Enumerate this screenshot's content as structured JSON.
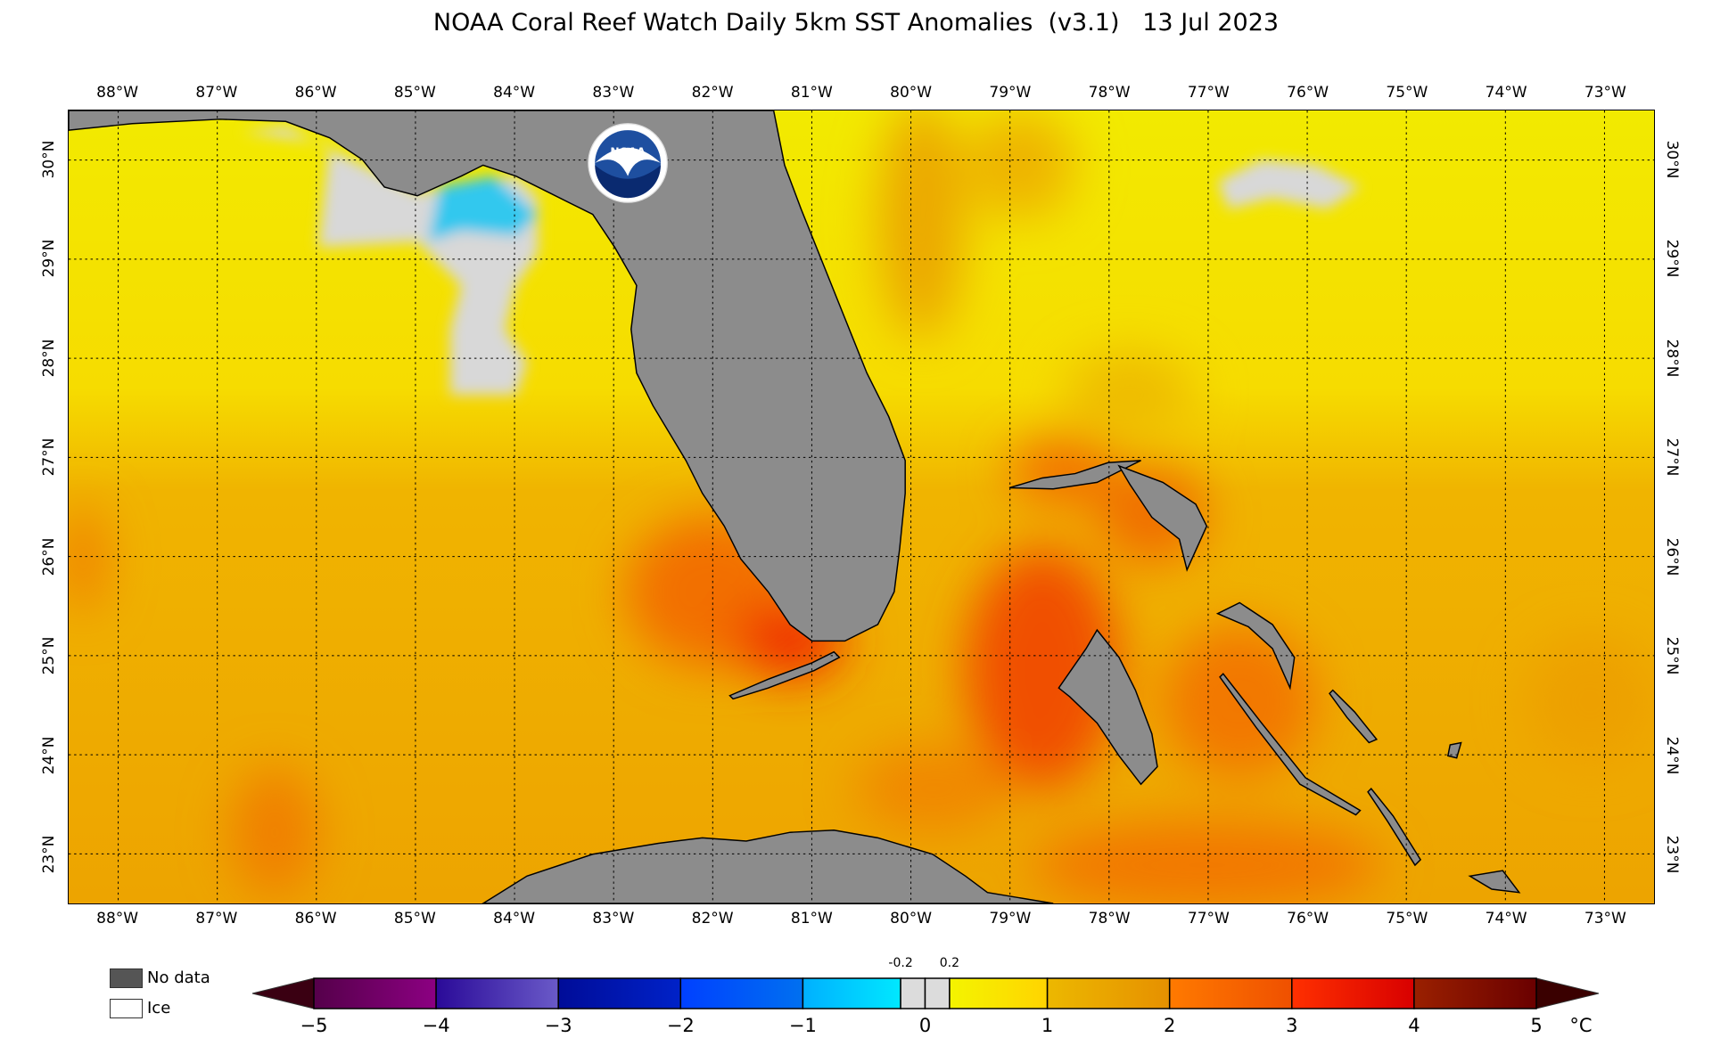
{
  "title": "NOAA Coral Reef Watch Daily 5km SST Anomalies  (v3.1)   13 Jul 2023",
  "map": {
    "lon_labels": [
      "88°W",
      "87°W",
      "86°W",
      "85°W",
      "84°W",
      "83°W",
      "82°W",
      "81°W",
      "80°W",
      "79°W",
      "78°W",
      "77°W",
      "76°W",
      "75°W",
      "74°W",
      "73°W"
    ],
    "lat_labels": [
      "30°N",
      "29°N",
      "28°N",
      "27°N",
      "26°N",
      "25°N",
      "24°N",
      "23°N"
    ],
    "extent": {
      "lon_min": -88.5,
      "lon_max": -72.5,
      "lat_min": 22.5,
      "lat_max": 30.5
    },
    "land_color": "#8c8c8c",
    "logo_text": "NOAA"
  },
  "legend": {
    "no_data": {
      "label": "No data",
      "color": "#555555"
    },
    "ice": {
      "label": "Ice",
      "color": "#ffffff"
    }
  },
  "colorbar": {
    "unit": "°C",
    "ticks": [
      "−5",
      "−4",
      "−3",
      "−2",
      "−1",
      "0",
      "1",
      "2",
      "3",
      "4",
      "5"
    ],
    "minor_labels": [
      "-0.2",
      "0.2"
    ],
    "under_color": "#3a0012",
    "over_color": "#3a0000",
    "segments": [
      {
        "from": -5,
        "to": -4,
        "c1": "#55004a",
        "c2": "#8c0082"
      },
      {
        "from": -4,
        "to": -3,
        "c1": "#2a0a98",
        "c2": "#6a5ac8"
      },
      {
        "from": -3,
        "to": -2,
        "c1": "#000c98",
        "c2": "#0022c8"
      },
      {
        "from": -2,
        "to": -1,
        "c1": "#0040ff",
        "c2": "#0070f0"
      },
      {
        "from": -1,
        "to": -0.2,
        "c1": "#00b0ff",
        "c2": "#00e8ff"
      },
      {
        "from": -0.2,
        "to": 0,
        "c1": "#dcdcdc",
        "c2": "#dcdcdc"
      },
      {
        "from": 0,
        "to": 0.2,
        "c1": "#dcdcdc",
        "c2": "#dcdcdc"
      },
      {
        "from": 0.2,
        "to": 1,
        "c1": "#f4f400",
        "c2": "#ffd400"
      },
      {
        "from": 1,
        "to": 2,
        "c1": "#ecb800",
        "c2": "#e69000"
      },
      {
        "from": 2,
        "to": 3,
        "c1": "#ff7a00",
        "c2": "#ef5000"
      },
      {
        "from": 3,
        "to": 4,
        "c1": "#ff3000",
        "c2": "#d80000"
      },
      {
        "from": 4,
        "to": 5,
        "c1": "#9a2000",
        "c2": "#6a0000"
      }
    ]
  }
}
